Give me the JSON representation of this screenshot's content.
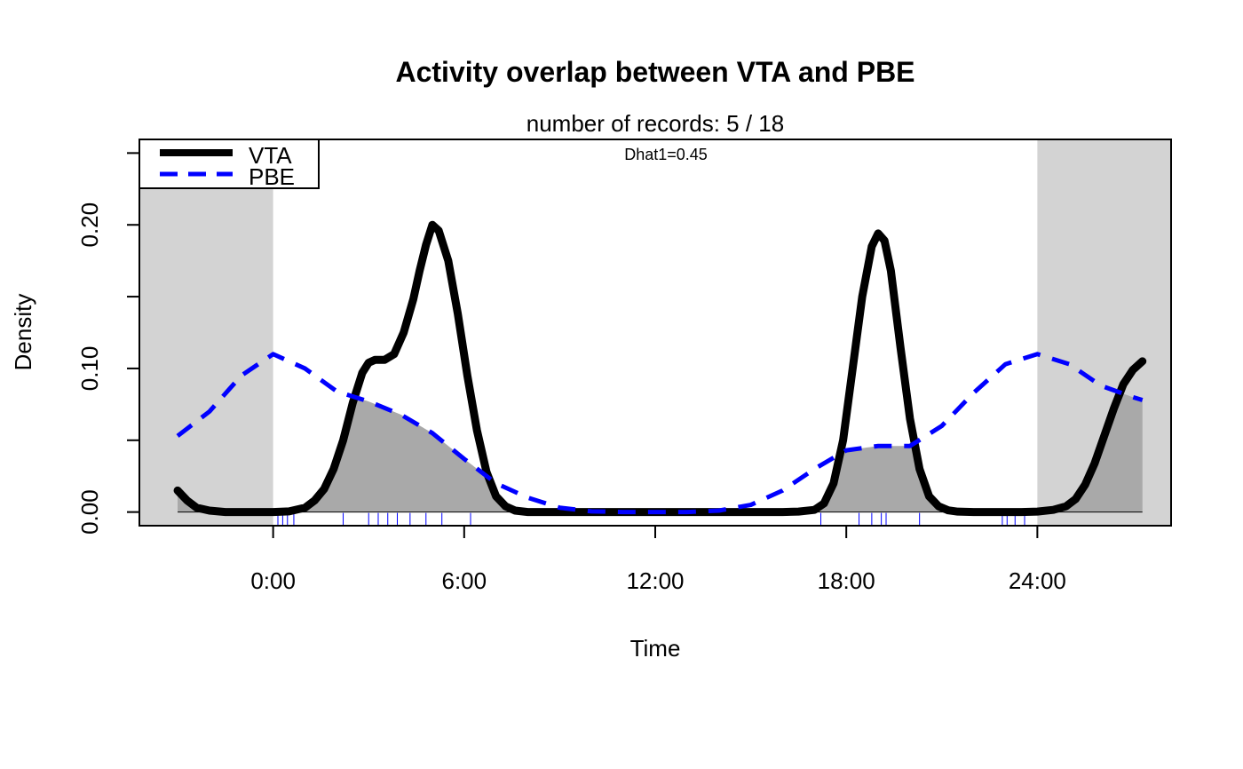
{
  "chart_data": {
    "type": "line",
    "title": "Activity overlap between  VTA and PBE",
    "subtitle": "number of records: 5 / 18",
    "annotation": "Dhat1=0.45",
    "xlabel": "Time",
    "ylabel": "Density",
    "xlim": [
      -4.2,
      28.2
    ],
    "ylim": [
      -0.0095,
      0.2595
    ],
    "x_ticks": [
      0,
      6,
      12,
      18,
      24
    ],
    "x_tick_labels": [
      "0:00",
      "6:00",
      "12:00",
      "18:00",
      "24:00"
    ],
    "y_ticks": [
      0.0,
      0.05,
      0.1,
      0.15,
      0.2,
      0.25
    ],
    "y_tick_labels": [
      "0.00",
      "",
      "0.10",
      "",
      "0.20",
      ""
    ],
    "night_shading": [
      [
        -4.2,
        0
      ],
      [
        24,
        28.2
      ]
    ],
    "night_color": "#d3d3d3",
    "overlap_color": "#a9a9a9",
    "legend": {
      "position": "top-left",
      "entries": [
        {
          "label": "VTA",
          "color": "#000000",
          "dash": "solid"
        },
        {
          "label": "PBE",
          "color": "#0000ff",
          "dash": "dashed"
        }
      ]
    },
    "series": [
      {
        "name": "VTA",
        "color": "#000000",
        "x": [
          -3.0,
          -2.7,
          -2.4,
          -2.0,
          -1.5,
          -1.0,
          -0.5,
          0.0,
          0.5,
          1.0,
          1.3,
          1.6,
          1.9,
          2.2,
          2.5,
          2.8,
          3.0,
          3.2,
          3.5,
          3.8,
          4.1,
          4.4,
          4.6,
          4.8,
          5.0,
          5.2,
          5.5,
          5.8,
          6.1,
          6.4,
          6.7,
          7.0,
          7.3,
          7.6,
          8.0,
          8.5,
          9.0,
          10.0,
          12.0,
          14.0,
          15.0,
          16.0,
          16.5,
          17.0,
          17.3,
          17.6,
          17.9,
          18.2,
          18.5,
          18.8,
          19.0,
          19.2,
          19.4,
          19.7,
          20.0,
          20.3,
          20.6,
          20.9,
          21.2,
          21.5,
          22.0,
          22.5,
          23.0,
          23.5,
          24.0,
          24.5,
          24.9,
          25.2,
          25.5,
          25.8,
          26.1,
          26.4,
          26.7,
          27.0,
          27.3
        ],
        "y": [
          0.015,
          0.008,
          0.003,
          0.001,
          0.0,
          0.0,
          0.0,
          0.0,
          0.0005,
          0.003,
          0.008,
          0.016,
          0.03,
          0.05,
          0.076,
          0.097,
          0.104,
          0.106,
          0.106,
          0.11,
          0.125,
          0.148,
          0.168,
          0.186,
          0.2,
          0.196,
          0.175,
          0.138,
          0.095,
          0.057,
          0.028,
          0.011,
          0.004,
          0.001,
          0.0,
          0.0,
          0.0,
          0.0,
          0.0,
          0.0,
          0.0,
          0.0,
          0.0003,
          0.0015,
          0.006,
          0.02,
          0.05,
          0.1,
          0.15,
          0.185,
          0.194,
          0.189,
          0.168,
          0.115,
          0.065,
          0.03,
          0.011,
          0.004,
          0.0012,
          0.0003,
          0.0,
          0.0,
          0.0,
          0.0,
          0.0003,
          0.0015,
          0.004,
          0.009,
          0.019,
          0.034,
          0.053,
          0.072,
          0.089,
          0.099,
          0.105
        ]
      },
      {
        "name": "PBE",
        "color": "#0000ff",
        "x": [
          -3.0,
          -2.0,
          -1.0,
          0.0,
          1.0,
          2.0,
          3.0,
          4.0,
          5.0,
          6.0,
          7.0,
          8.0,
          9.0,
          10.0,
          11.0,
          12.0,
          13.0,
          14.0,
          15.0,
          16.0,
          17.0,
          18.0,
          19.0,
          20.0,
          21.0,
          22.0,
          23.0,
          24.0,
          25.0,
          26.0,
          27.0,
          27.3
        ],
        "y": [
          0.053,
          0.07,
          0.095,
          0.11,
          0.1,
          0.084,
          0.077,
          0.068,
          0.055,
          0.037,
          0.02,
          0.01,
          0.003,
          0.0005,
          0.0,
          0.0,
          0.0,
          0.001,
          0.005,
          0.015,
          0.03,
          0.043,
          0.046,
          0.046,
          0.06,
          0.083,
          0.103,
          0.11,
          0.103,
          0.088,
          0.08,
          0.078
        ]
      }
    ],
    "rug": {
      "color": "#0000ff",
      "x": [
        0.15,
        0.3,
        0.45,
        0.65,
        2.2,
        3.0,
        3.3,
        3.6,
        3.9,
        4.3,
        4.8,
        5.3,
        6.2,
        17.2,
        18.4,
        18.8,
        19.1,
        19.25,
        20.3,
        22.9,
        23.05,
        23.3,
        23.6
      ]
    }
  }
}
